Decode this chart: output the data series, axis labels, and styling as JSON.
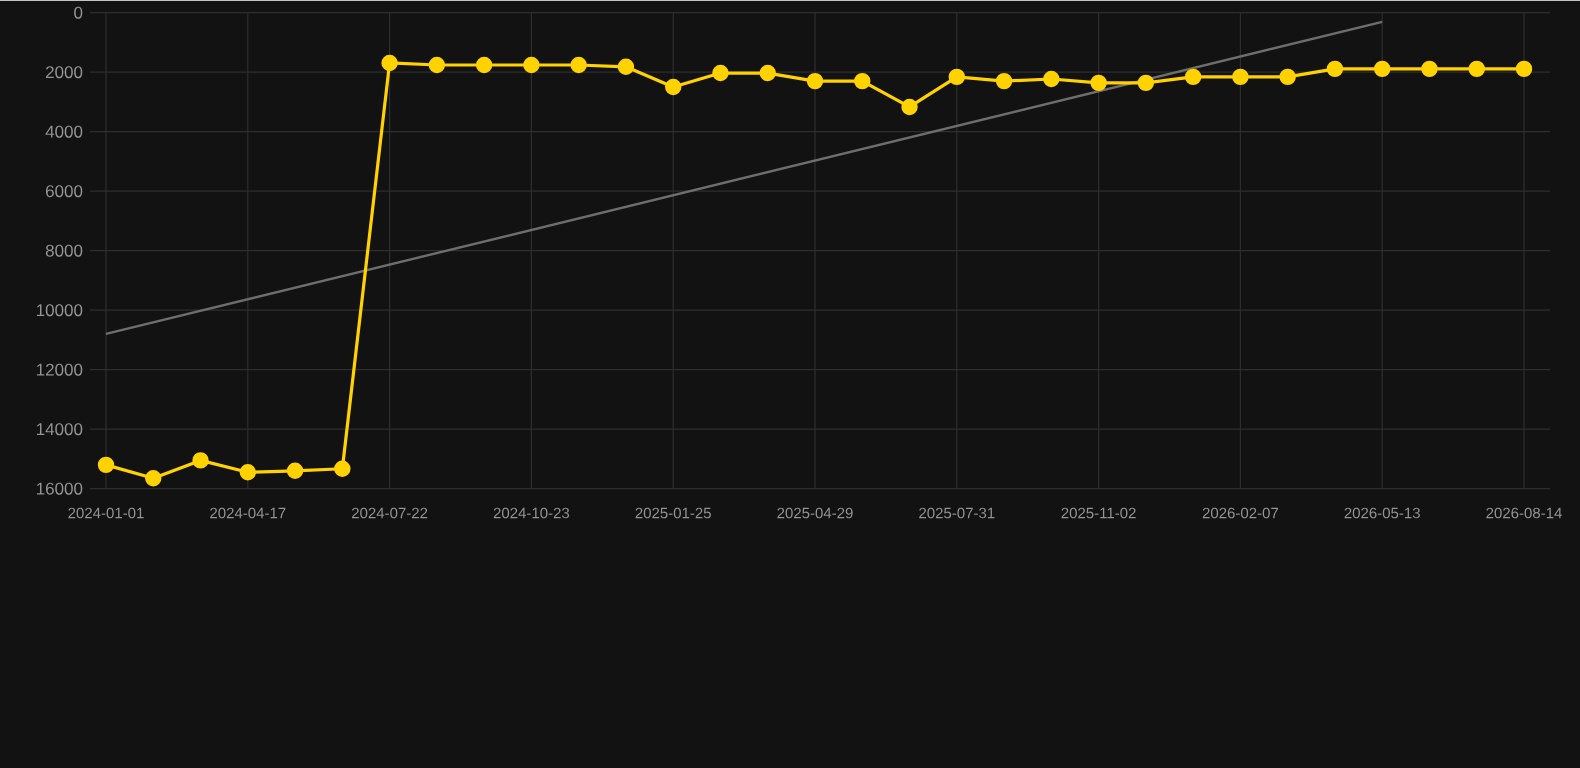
{
  "chart_data": {
    "type": "line",
    "categories": [
      "2024-01-01",
      null,
      null,
      "2024-04-17",
      null,
      null,
      "2024-07-22",
      null,
      null,
      "2024-10-23",
      null,
      null,
      "2025-01-25",
      null,
      null,
      "2025-04-29",
      null,
      null,
      "2025-07-31",
      null,
      null,
      "2025-11-02",
      null,
      null,
      "2026-02-07",
      null,
      null,
      "2026-05-13",
      null,
      null,
      "2026-08-14"
    ],
    "series": [
      {
        "color": "#ffd200",
        "marker": "circle",
        "values": [
          15200,
          15650,
          15050,
          15450,
          15400,
          15330,
          1690,
          1760,
          1760,
          1760,
          1760,
          1820,
          2500,
          2030,
          2030,
          2300,
          2300,
          3170,
          2160,
          2300,
          2230,
          2360,
          2360,
          2160,
          2160,
          2160,
          1890,
          1890,
          1890,
          1890,
          1890
        ]
      },
      {
        "color": "#6e6e6e",
        "marker": "none",
        "values": [
          10800,
          null,
          null,
          null,
          null,
          null,
          null,
          null,
          null,
          null,
          null,
          null,
          null,
          null,
          null,
          null,
          null,
          null,
          null,
          null,
          null,
          null,
          null,
          null,
          null,
          null,
          null,
          310,
          null,
          null,
          null
        ]
      }
    ],
    "ylim": [
      16000,
      0
    ],
    "yticks": [
      0,
      2000,
      4000,
      6000,
      8000,
      10000,
      12000,
      14000,
      16000
    ],
    "grid": true
  }
}
